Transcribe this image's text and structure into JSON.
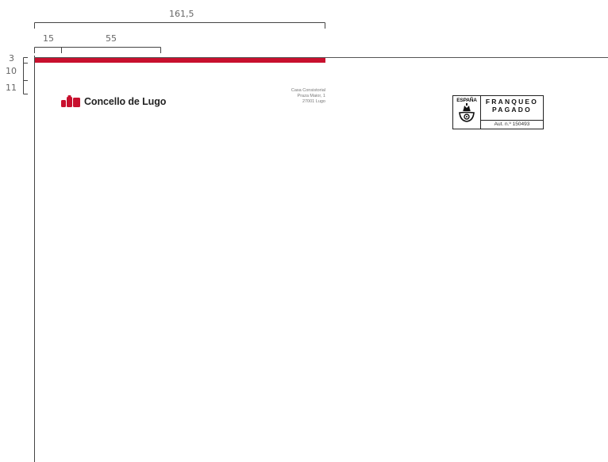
{
  "dimensions": {
    "total_width": "161,5",
    "left_margin": "15",
    "logo_width": "55",
    "bar_height": "3",
    "gap_height": "10",
    "logo_height": "11"
  },
  "logo": {
    "name": "Concello de Lugo",
    "brand_color": "#c8102e"
  },
  "address": {
    "line1": "Casa Consistorial",
    "line2": "Praza Maior, 1",
    "line3": "27001 Lugo"
  },
  "postage_stamp": {
    "country": "ESPAÑA",
    "line1": "FRANQUEO",
    "line2": "PAGADO",
    "authorization": "Aut. n.º 150493"
  },
  "colors": {
    "accent_bar": "#c8102e",
    "dimension_lines": "#444444"
  }
}
